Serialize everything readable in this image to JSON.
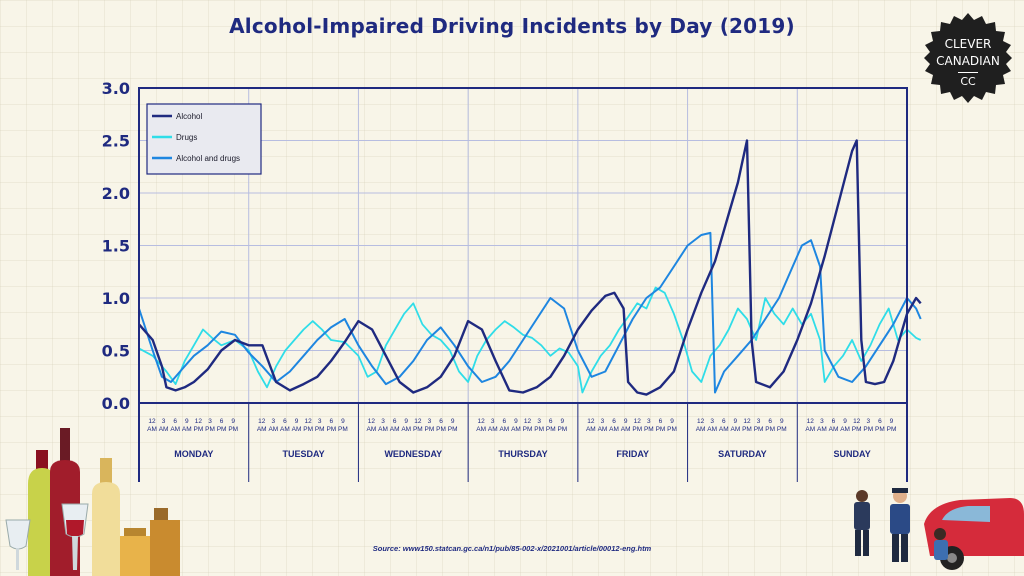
{
  "brand": {
    "line1": "CLEVER",
    "line2": "CANADIAN",
    "mark": "CC"
  },
  "source": "Source: www150.statcan.gc.ca/n1/pub/85-002-x/2021001/article/00012-eng.htm",
  "colors": {
    "alcohol": "#1f2a80",
    "drugs": "#2fdde8",
    "alcohol_and_drugs": "#1e86e0",
    "axis": "#1f2a80"
  },
  "chart_data": {
    "type": "line",
    "title": "Alcohol-Impaired Driving Incidents by Day (2019)",
    "xlabel": "",
    "ylabel": "",
    "ylim": [
      0,
      3.0
    ],
    "yticks": [
      "0.0",
      "0.5",
      "1.0",
      "1.5",
      "2.0",
      "2.5",
      "3.0"
    ],
    "grid": true,
    "legend_position": "top-left",
    "days": [
      "MONDAY",
      "TUESDAY",
      "WEDNESDAY",
      "THURSDAY",
      "FRIDAY",
      "SATURDAY",
      "SUNDAY"
    ],
    "hour_ticks": [
      {
        "num": "12",
        "ap": "AM"
      },
      {
        "num": "3",
        "ap": "AM"
      },
      {
        "num": "6",
        "ap": "AM"
      },
      {
        "num": "9",
        "ap": "AM"
      },
      {
        "num": "12",
        "ap": "PM"
      },
      {
        "num": "3",
        "ap": "PM"
      },
      {
        "num": "6",
        "ap": "PM"
      },
      {
        "num": "9",
        "ap": "PM"
      }
    ],
    "x_unit": "hour of week (0 = Monday 12 AM)",
    "series": [
      {
        "name": "Alcohol",
        "points": [
          [
            0,
            0.75
          ],
          [
            3,
            0.6
          ],
          [
            5,
            0.35
          ],
          [
            6,
            0.15
          ],
          [
            8,
            0.12
          ],
          [
            10,
            0.15
          ],
          [
            12,
            0.2
          ],
          [
            15,
            0.32
          ],
          [
            18,
            0.5
          ],
          [
            21,
            0.6
          ],
          [
            24,
            0.55
          ],
          [
            27,
            0.55
          ],
          [
            30,
            0.2
          ],
          [
            33,
            0.12
          ],
          [
            36,
            0.18
          ],
          [
            39,
            0.25
          ],
          [
            42,
            0.4
          ],
          [
            45,
            0.58
          ],
          [
            48,
            0.78
          ],
          [
            51,
            0.7
          ],
          [
            54,
            0.45
          ],
          [
            57,
            0.2
          ],
          [
            60,
            0.1
          ],
          [
            63,
            0.15
          ],
          [
            66,
            0.25
          ],
          [
            69,
            0.45
          ],
          [
            72,
            0.78
          ],
          [
            75,
            0.7
          ],
          [
            78,
            0.4
          ],
          [
            81,
            0.12
          ],
          [
            84,
            0.1
          ],
          [
            87,
            0.15
          ],
          [
            90,
            0.25
          ],
          [
            93,
            0.45
          ],
          [
            96,
            0.7
          ],
          [
            99,
            0.88
          ],
          [
            102,
            1.02
          ],
          [
            104,
            1.05
          ],
          [
            106,
            0.9
          ],
          [
            107,
            0.2
          ],
          [
            109,
            0.1
          ],
          [
            111,
            0.08
          ],
          [
            114,
            0.15
          ],
          [
            117,
            0.3
          ],
          [
            120,
            0.7
          ],
          [
            123,
            1.05
          ],
          [
            126,
            1.35
          ],
          [
            129,
            1.8
          ],
          [
            131,
            2.1
          ],
          [
            132,
            2.3
          ],
          [
            133,
            2.5
          ],
          [
            134,
            0.6
          ],
          [
            135,
            0.2
          ],
          [
            138,
            0.15
          ],
          [
            141,
            0.3
          ],
          [
            144,
            0.6
          ],
          [
            147,
            0.95
          ],
          [
            150,
            1.4
          ],
          [
            153,
            1.9
          ],
          [
            156,
            2.4
          ],
          [
            157,
            2.5
          ],
          [
            158,
            0.6
          ],
          [
            159,
            0.2
          ],
          [
            161,
            0.18
          ],
          [
            163,
            0.2
          ],
          [
            165,
            0.4
          ],
          [
            167,
            0.7
          ],
          [
            168,
            0.85
          ],
          [
            170,
            1.0
          ],
          [
            171,
            0.95
          ]
        ]
      },
      {
        "name": "Drugs",
        "points": [
          [
            0,
            0.52
          ],
          [
            3,
            0.45
          ],
          [
            6,
            0.3
          ],
          [
            8,
            0.18
          ],
          [
            10,
            0.4
          ],
          [
            12,
            0.55
          ],
          [
            14,
            0.7
          ],
          [
            16,
            0.62
          ],
          [
            18,
            0.55
          ],
          [
            21,
            0.6
          ],
          [
            24,
            0.5
          ],
          [
            26,
            0.3
          ],
          [
            28,
            0.15
          ],
          [
            30,
            0.35
          ],
          [
            32,
            0.5
          ],
          [
            34,
            0.6
          ],
          [
            36,
            0.7
          ],
          [
            38,
            0.78
          ],
          [
            40,
            0.7
          ],
          [
            42,
            0.6
          ],
          [
            45,
            0.58
          ],
          [
            48,
            0.45
          ],
          [
            50,
            0.25
          ],
          [
            52,
            0.3
          ],
          [
            54,
            0.55
          ],
          [
            56,
            0.7
          ],
          [
            58,
            0.85
          ],
          [
            60,
            0.95
          ],
          [
            62,
            0.75
          ],
          [
            64,
            0.65
          ],
          [
            66,
            0.6
          ],
          [
            68,
            0.5
          ],
          [
            70,
            0.3
          ],
          [
            72,
            0.2
          ],
          [
            74,
            0.45
          ],
          [
            76,
            0.6
          ],
          [
            78,
            0.7
          ],
          [
            80,
            0.78
          ],
          [
            82,
            0.72
          ],
          [
            84,
            0.65
          ],
          [
            86,
            0.62
          ],
          [
            88,
            0.55
          ],
          [
            90,
            0.45
          ],
          [
            92,
            0.52
          ],
          [
            94,
            0.48
          ],
          [
            96,
            0.35
          ],
          [
            97,
            0.1
          ],
          [
            99,
            0.3
          ],
          [
            101,
            0.45
          ],
          [
            103,
            0.55
          ],
          [
            105,
            0.7
          ],
          [
            107,
            0.82
          ],
          [
            109,
            0.95
          ],
          [
            111,
            0.9
          ],
          [
            113,
            1.1
          ],
          [
            115,
            1.05
          ],
          [
            117,
            0.85
          ],
          [
            119,
            0.6
          ],
          [
            121,
            0.3
          ],
          [
            123,
            0.2
          ],
          [
            125,
            0.45
          ],
          [
            127,
            0.55
          ],
          [
            129,
            0.7
          ],
          [
            131,
            0.9
          ],
          [
            133,
            0.8
          ],
          [
            135,
            0.6
          ],
          [
            137,
            1.0
          ],
          [
            139,
            0.85
          ],
          [
            141,
            0.75
          ],
          [
            143,
            0.9
          ],
          [
            145,
            0.75
          ],
          [
            147,
            0.85
          ],
          [
            149,
            0.6
          ],
          [
            150,
            0.2
          ],
          [
            152,
            0.35
          ],
          [
            154,
            0.45
          ],
          [
            156,
            0.6
          ],
          [
            158,
            0.4
          ],
          [
            160,
            0.55
          ],
          [
            162,
            0.75
          ],
          [
            164,
            0.9
          ],
          [
            166,
            0.6
          ],
          [
            168,
            0.7
          ],
          [
            170,
            0.62
          ],
          [
            171,
            0.6
          ]
        ]
      },
      {
        "name": "Alcohol and drugs",
        "points": [
          [
            0,
            0.9
          ],
          [
            3,
            0.5
          ],
          [
            5,
            0.25
          ],
          [
            7,
            0.2
          ],
          [
            9,
            0.3
          ],
          [
            12,
            0.45
          ],
          [
            15,
            0.55
          ],
          [
            18,
            0.68
          ],
          [
            21,
            0.65
          ],
          [
            24,
            0.48
          ],
          [
            27,
            0.35
          ],
          [
            30,
            0.2
          ],
          [
            33,
            0.3
          ],
          [
            36,
            0.45
          ],
          [
            39,
            0.6
          ],
          [
            42,
            0.72
          ],
          [
            45,
            0.8
          ],
          [
            48,
            0.55
          ],
          [
            51,
            0.35
          ],
          [
            54,
            0.18
          ],
          [
            57,
            0.25
          ],
          [
            60,
            0.4
          ],
          [
            63,
            0.6
          ],
          [
            66,
            0.72
          ],
          [
            69,
            0.55
          ],
          [
            72,
            0.35
          ],
          [
            75,
            0.2
          ],
          [
            78,
            0.25
          ],
          [
            81,
            0.4
          ],
          [
            84,
            0.6
          ],
          [
            87,
            0.8
          ],
          [
            90,
            1.0
          ],
          [
            93,
            0.9
          ],
          [
            96,
            0.5
          ],
          [
            99,
            0.25
          ],
          [
            102,
            0.3
          ],
          [
            105,
            0.55
          ],
          [
            108,
            0.8
          ],
          [
            111,
            1.0
          ],
          [
            114,
            1.1
          ],
          [
            117,
            1.3
          ],
          [
            120,
            1.5
          ],
          [
            123,
            1.6
          ],
          [
            125,
            1.62
          ],
          [
            126,
            0.1
          ],
          [
            128,
            0.3
          ],
          [
            131,
            0.45
          ],
          [
            134,
            0.6
          ],
          [
            137,
            0.8
          ],
          [
            140,
            1.0
          ],
          [
            143,
            1.3
          ],
          [
            145,
            1.5
          ],
          [
            147,
            1.55
          ],
          [
            149,
            1.3
          ],
          [
            150,
            0.5
          ],
          [
            153,
            0.25
          ],
          [
            156,
            0.2
          ],
          [
            159,
            0.35
          ],
          [
            162,
            0.55
          ],
          [
            165,
            0.75
          ],
          [
            168,
            1.0
          ],
          [
            170,
            0.9
          ],
          [
            171,
            0.8
          ]
        ]
      }
    ]
  }
}
